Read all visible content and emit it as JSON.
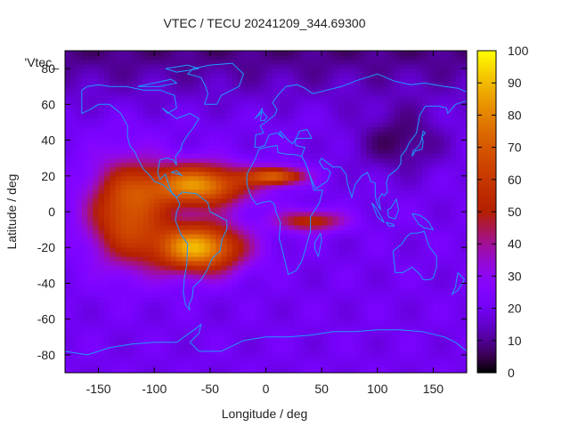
{
  "chart_data": {
    "type": "heatmap",
    "title": "VTEC / TECU 20241209_344.69300",
    "xlabel": "Longitude / deg",
    "ylabel": "Latitude / deg",
    "series_key_label": "'Vtec_",
    "xlim": [
      -180,
      180
    ],
    "ylim": [
      -90,
      90
    ],
    "x_ticks": [
      -150,
      -100,
      -50,
      0,
      50,
      100,
      150
    ],
    "x_tick_labels": [
      "-150",
      "-100",
      "-50",
      "0",
      "50",
      "100",
      "150"
    ],
    "y_ticks": [
      -80,
      -60,
      -40,
      -20,
      0,
      20,
      40,
      60,
      80
    ],
    "y_tick_labels": [
      "-80",
      "-60",
      "-40",
      "-20",
      "0",
      "20",
      "40",
      "60",
      "80"
    ],
    "colorbar": {
      "range": [
        0,
        100
      ],
      "ticks": [
        0,
        10,
        20,
        30,
        40,
        50,
        60,
        70,
        80,
        90,
        100
      ],
      "tick_labels": [
        "0",
        "10",
        "20",
        "30",
        "40",
        "50",
        "60",
        "70",
        "80",
        "90",
        "100"
      ]
    },
    "grid_resolution_deg": {
      "lon": 5,
      "lat": 2.5
    },
    "field_features": [
      {
        "name": "background",
        "value": 20
      },
      {
        "name": "equatorial-anomaly-north",
        "lon": -60,
        "lat": 15,
        "value": 82
      },
      {
        "name": "equatorial-anomaly-south",
        "lon": -60,
        "lat": -20,
        "value": 88
      },
      {
        "name": "eastern-pacific-region",
        "lon": -125,
        "lat": 0,
        "value": 68
      },
      {
        "name": "atlantic-tongue",
        "lon": 10,
        "lat": 20,
        "value": 70
      },
      {
        "name": "africa-tongue",
        "lon": 40,
        "lat": -5,
        "value": 55
      },
      {
        "name": "north-polar-region",
        "lat": 80,
        "value": 8
      },
      {
        "name": "asia-minimum",
        "lon": 120,
        "lat": 40,
        "value": 6
      }
    ]
  }
}
